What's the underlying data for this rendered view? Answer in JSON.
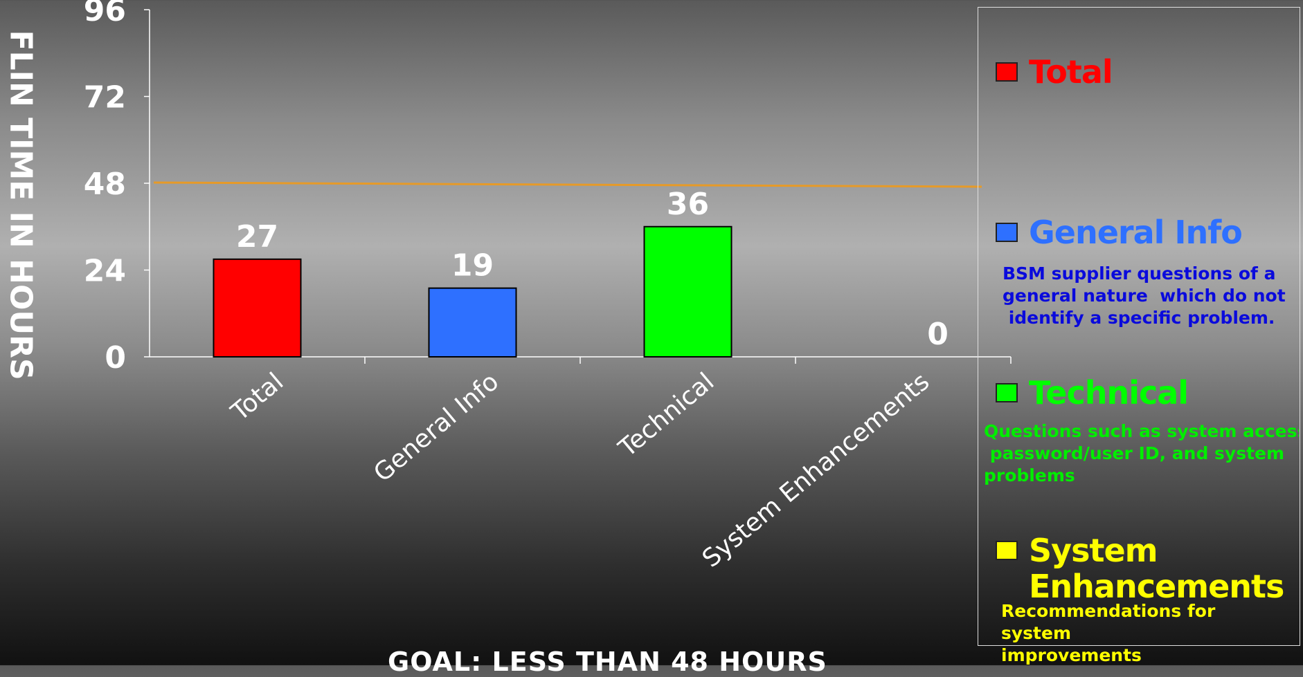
{
  "chart_data": {
    "type": "bar",
    "categories": [
      "Total",
      "General Info",
      "Technical",
      "System Enhancements"
    ],
    "values": [
      27,
      19,
      36,
      0
    ],
    "colors": [
      "#ff0000",
      "#2e70ff",
      "#00ff00",
      "#ffff00"
    ],
    "ylim": [
      0,
      96
    ],
    "yticks": [
      0,
      24,
      48,
      72,
      96
    ],
    "ylabel": "FLIN TIME IN HOURS",
    "goal_line": 48,
    "goal_line_color": "#e69a28",
    "grid": false,
    "legend_position": "right"
  },
  "legend": [
    {
      "label": "Total",
      "color": "#ff0000",
      "description": ""
    },
    {
      "label": "General Info",
      "color": "#2e70ff",
      "description": "BSM supplier questions of a\ngeneral nature  which do not\n identify a specific problem."
    },
    {
      "label": "Technical",
      "color": "#00ff00",
      "description": "Questions such as system access,\n password/user ID, and system\nproblems"
    },
    {
      "label": "System\nEnhancements",
      "color": "#ffff00",
      "description": "Recommendations for\nsystem\nimprovements"
    }
  ],
  "legend_desc_colors": [
    "#ff0000",
    "#0a0adc",
    "#00ee00",
    "#ffff00"
  ],
  "goal_text": "GOAL:  LESS THAN 48 HOURS"
}
